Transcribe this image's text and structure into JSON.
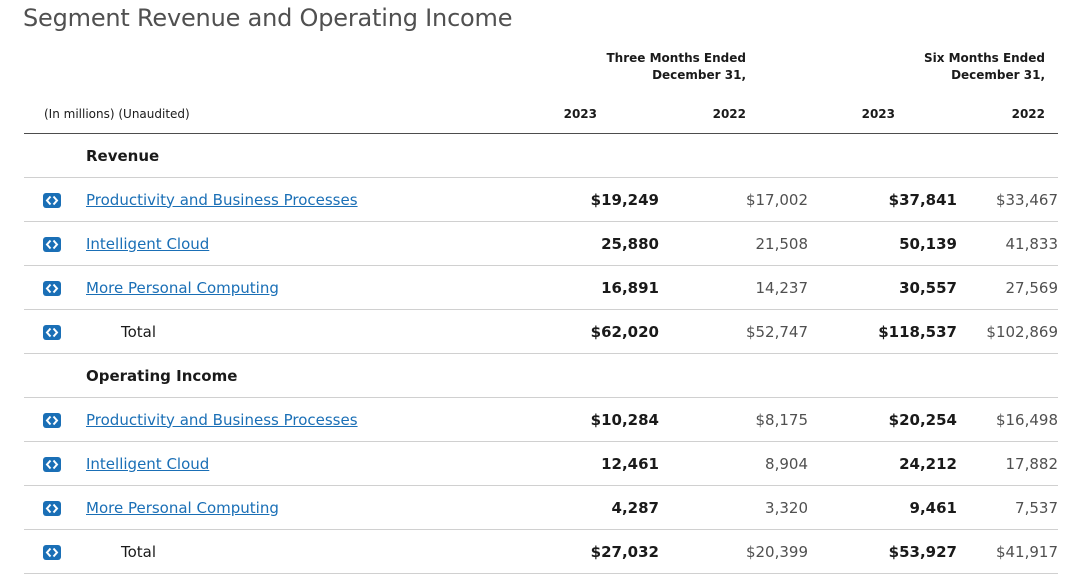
{
  "title": "Segment Revenue and Operating Income",
  "header": {
    "group_a": [
      "Three Months Ended",
      "December 31,"
    ],
    "group_b": [
      "Six Months Ended",
      "December 31,"
    ],
    "unit_label": "(In millions) (Unaudited)",
    "years": [
      "2023",
      "2022",
      "2023",
      "2022"
    ]
  },
  "sections": [
    {
      "label": "Revenue",
      "rows": [
        {
          "label": "Productivity and Business Processes",
          "values": [
            "$19,249",
            "$17,002",
            "$37,841",
            "$33,467"
          ]
        },
        {
          "label": "Intelligent Cloud",
          "values": [
            "25,880",
            "21,508",
            "50,139",
            "41,833"
          ]
        },
        {
          "label": "More Personal Computing",
          "values": [
            "16,891",
            "14,237",
            "30,557",
            "27,569"
          ]
        }
      ],
      "total": {
        "label": "Total",
        "values": [
          "$62,020",
          "$52,747",
          "$118,537",
          "$102,869"
        ]
      }
    },
    {
      "label": "Operating Income",
      "rows": [
        {
          "label": "Productivity and Business Processes",
          "values": [
            "$10,284",
            "$8,175",
            "$20,254",
            "$16,498"
          ]
        },
        {
          "label": "Intelligent Cloud",
          "values": [
            "12,461",
            "8,904",
            "24,212",
            "17,882"
          ]
        },
        {
          "label": "More Personal Computing",
          "values": [
            "4,287",
            "3,320",
            "9,461",
            "7,537"
          ]
        }
      ],
      "total": {
        "label": "Total",
        "values": [
          "$27,032",
          "$20,399",
          "$53,927",
          "$41,917"
        ]
      }
    }
  ],
  "icons": {
    "row_toggle": "expand-collapse-icon"
  },
  "colors": {
    "link": "#1a6fb6",
    "button": "#1a6fb6"
  }
}
